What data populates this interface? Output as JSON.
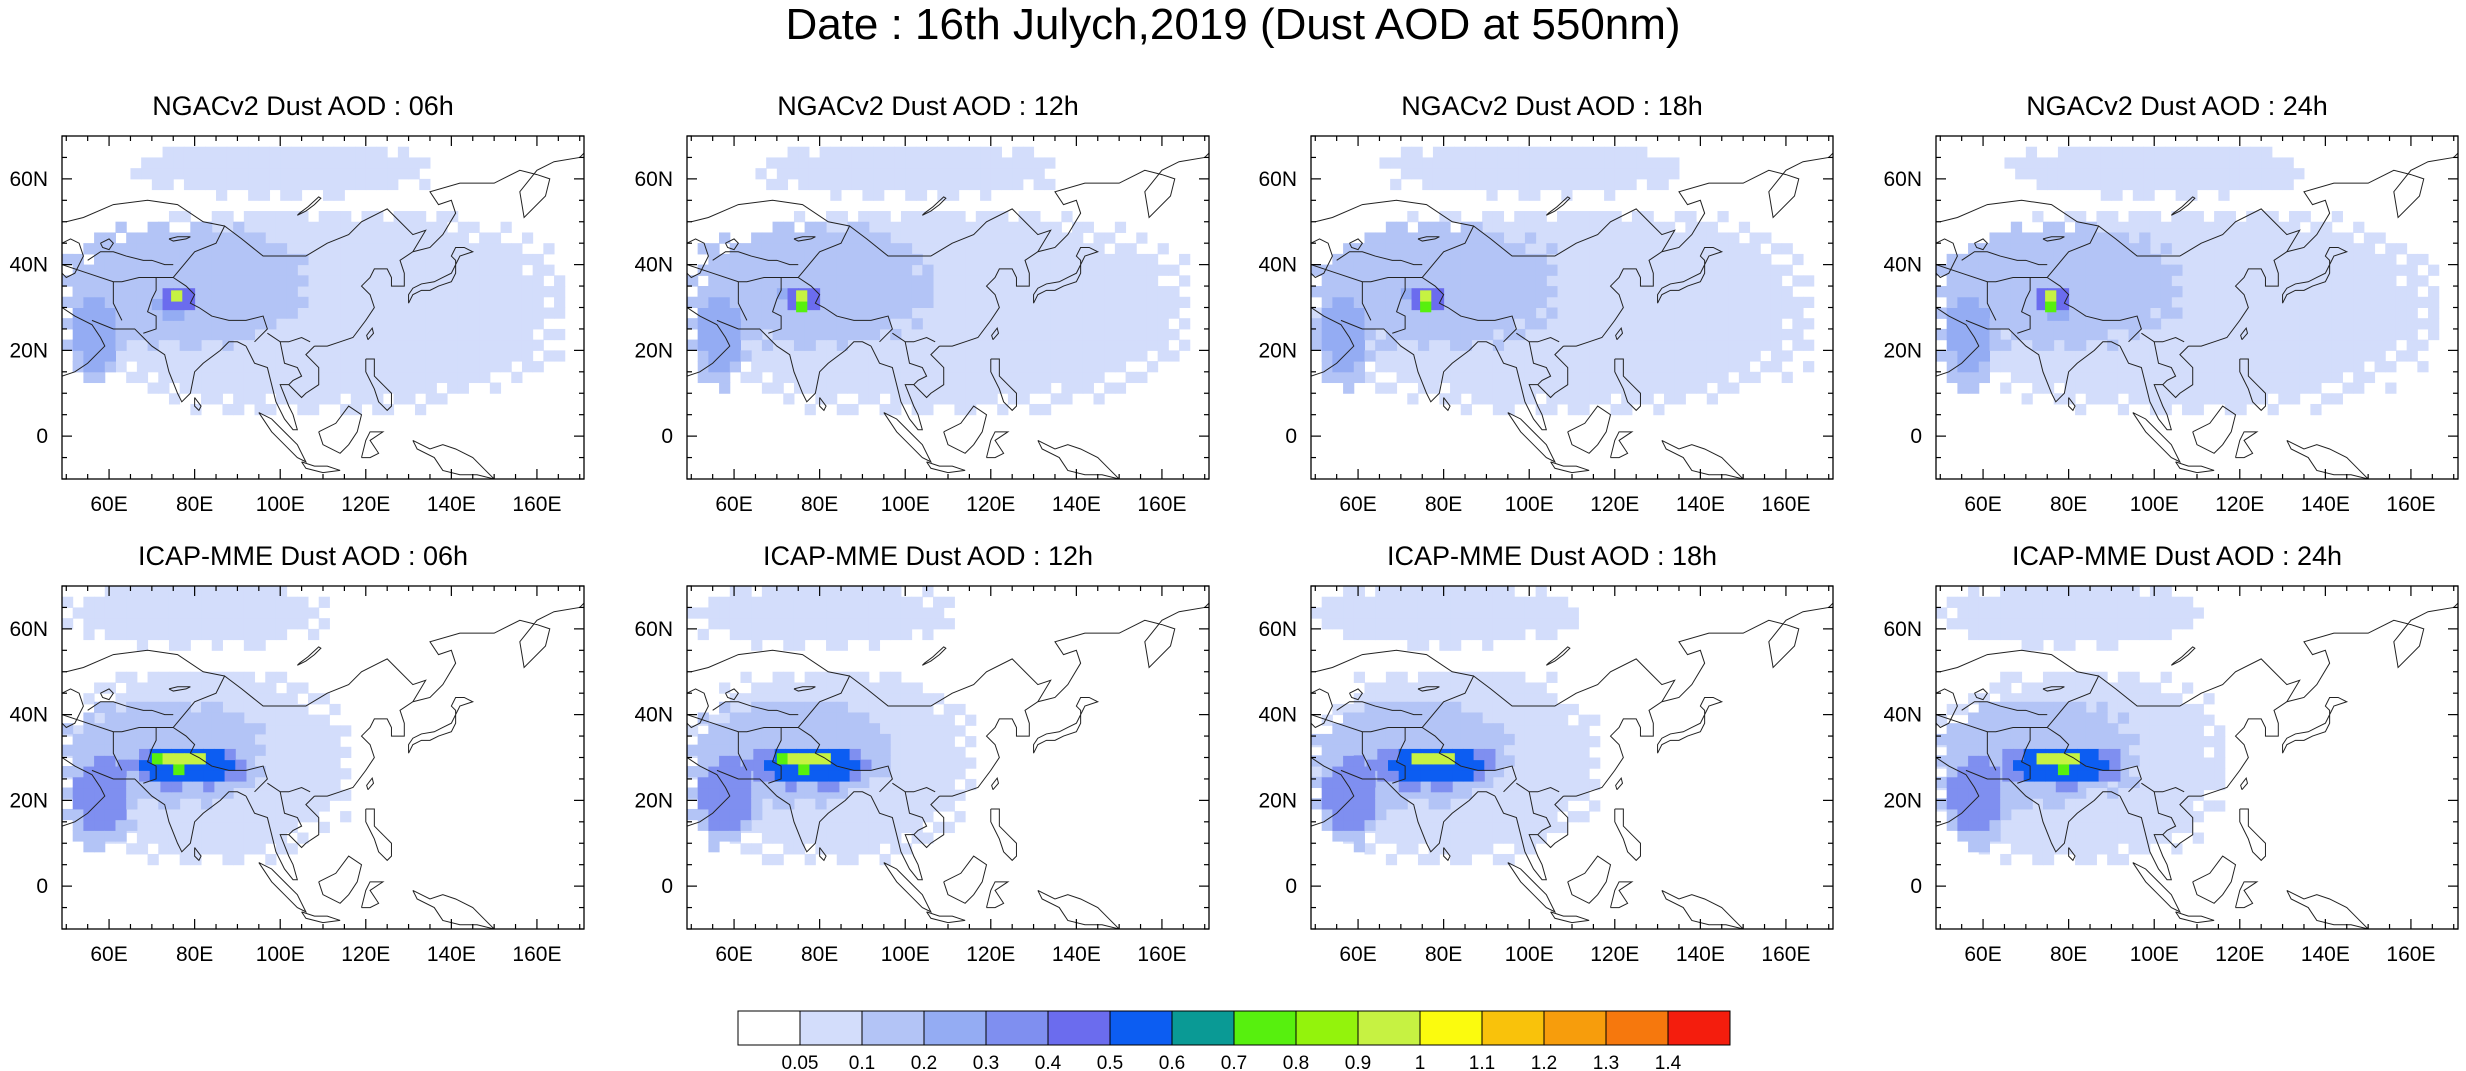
{
  "title": "Date : 16th Julych,2019 (Dust AOD at 550nm)",
  "panels": [
    {
      "title": "NGACv2 Dust AOD : 06h",
      "hour": "06h",
      "model": "NGACv2"
    },
    {
      "title": "NGACv2 Dust AOD : 12h",
      "hour": "12h",
      "model": "NGACv2"
    },
    {
      "title": "NGACv2 Dust AOD : 18h",
      "hour": "18h",
      "model": "NGACv2"
    },
    {
      "title": "NGACv2 Dust AOD : 24h",
      "hour": "24h",
      "model": "NGACv2"
    },
    {
      "title": "ICAP-MME Dust AOD : 06h",
      "hour": "06h",
      "model": "ICAP-MME"
    },
    {
      "title": "ICAP-MME Dust AOD : 12h",
      "hour": "12h",
      "model": "ICAP-MME"
    },
    {
      "title": "ICAP-MME Dust AOD : 18h",
      "hour": "18h",
      "model": "ICAP-MME"
    },
    {
      "title": "ICAP-MME Dust AOD : 24h",
      "hour": "24h",
      "model": "ICAP-MME"
    }
  ],
  "map": {
    "lon_range": [
      49,
      171
    ],
    "lat_range": [
      -10,
      70
    ],
    "lon_ticks": [
      60,
      80,
      100,
      120,
      140,
      160
    ],
    "lon_tick_labels": [
      "60E",
      "80E",
      "100E",
      "120E",
      "140E",
      "160E"
    ],
    "lat_ticks": [
      0,
      20,
      40,
      60
    ],
    "lat_tick_labels": [
      "0",
      "20N",
      "40N",
      "60N"
    ]
  },
  "colorbar": {
    "colors": [
      "#ffffff",
      "#d3ddfb",
      "#b3c4f6",
      "#94acf3",
      "#7f8ff0",
      "#6b6cee",
      "#0c5df2",
      "#0a9a95",
      "#57f00e",
      "#93f30c",
      "#c6f242",
      "#fbfb0e",
      "#f9c20b",
      "#f79d0c",
      "#f6780d",
      "#f41d0d"
    ],
    "labels": [
      "0.05",
      "0.1",
      "0.2",
      "0.3",
      "0.4",
      "0.5",
      "0.6",
      "0.7",
      "0.8",
      "0.9",
      "1",
      "1.1",
      "1.2",
      "1.3",
      "1.4"
    ]
  },
  "dust_fields": {
    "ngac": [
      {
        "name": "broad-haze",
        "lon": [
          49,
          165
        ],
        "lat": [
          5,
          52
        ],
        "level": 1
      },
      {
        "name": "northern-band",
        "lon": [
          65,
          135
        ],
        "lat": [
          55,
          67
        ],
        "level": 1
      },
      {
        "name": "central-asia",
        "lon": [
          49,
          105
        ],
        "lat": [
          20,
          48
        ],
        "level": 2
      },
      {
        "name": "arabia",
        "lon": [
          49,
          62
        ],
        "lat": [
          10,
          36
        ],
        "level": 3
      },
      {
        "name": "indus-core",
        "lon": [
          70,
          80
        ],
        "lat": [
          27,
          34
        ],
        "level": 5
      },
      {
        "name": "thar-peak",
        "lon": [
          72,
          77
        ],
        "lat": [
          29,
          32
        ],
        "level": 10
      }
    ],
    "icap": [
      {
        "name": "broad-haze",
        "lon": [
          49,
          115
        ],
        "lat": [
          5,
          50
        ],
        "level": 1
      },
      {
        "name": "northern-band",
        "lon": [
          49,
          110
        ],
        "lat": [
          55,
          69
        ],
        "level": 1
      },
      {
        "name": "central-asia",
        "lon": [
          49,
          95
        ],
        "lat": [
          18,
          42
        ],
        "level": 2
      },
      {
        "name": "arabia",
        "lon": [
          49,
          65
        ],
        "lat": [
          8,
          32
        ],
        "level": 4
      },
      {
        "name": "indo-gangetic",
        "lon": [
          62,
          92
        ],
        "lat": [
          22,
          32
        ],
        "level": 6
      },
      {
        "name": "thar-peak",
        "lon": [
          70,
          82
        ],
        "lat": [
          26,
          31
        ],
        "level": 10
      }
    ]
  }
}
